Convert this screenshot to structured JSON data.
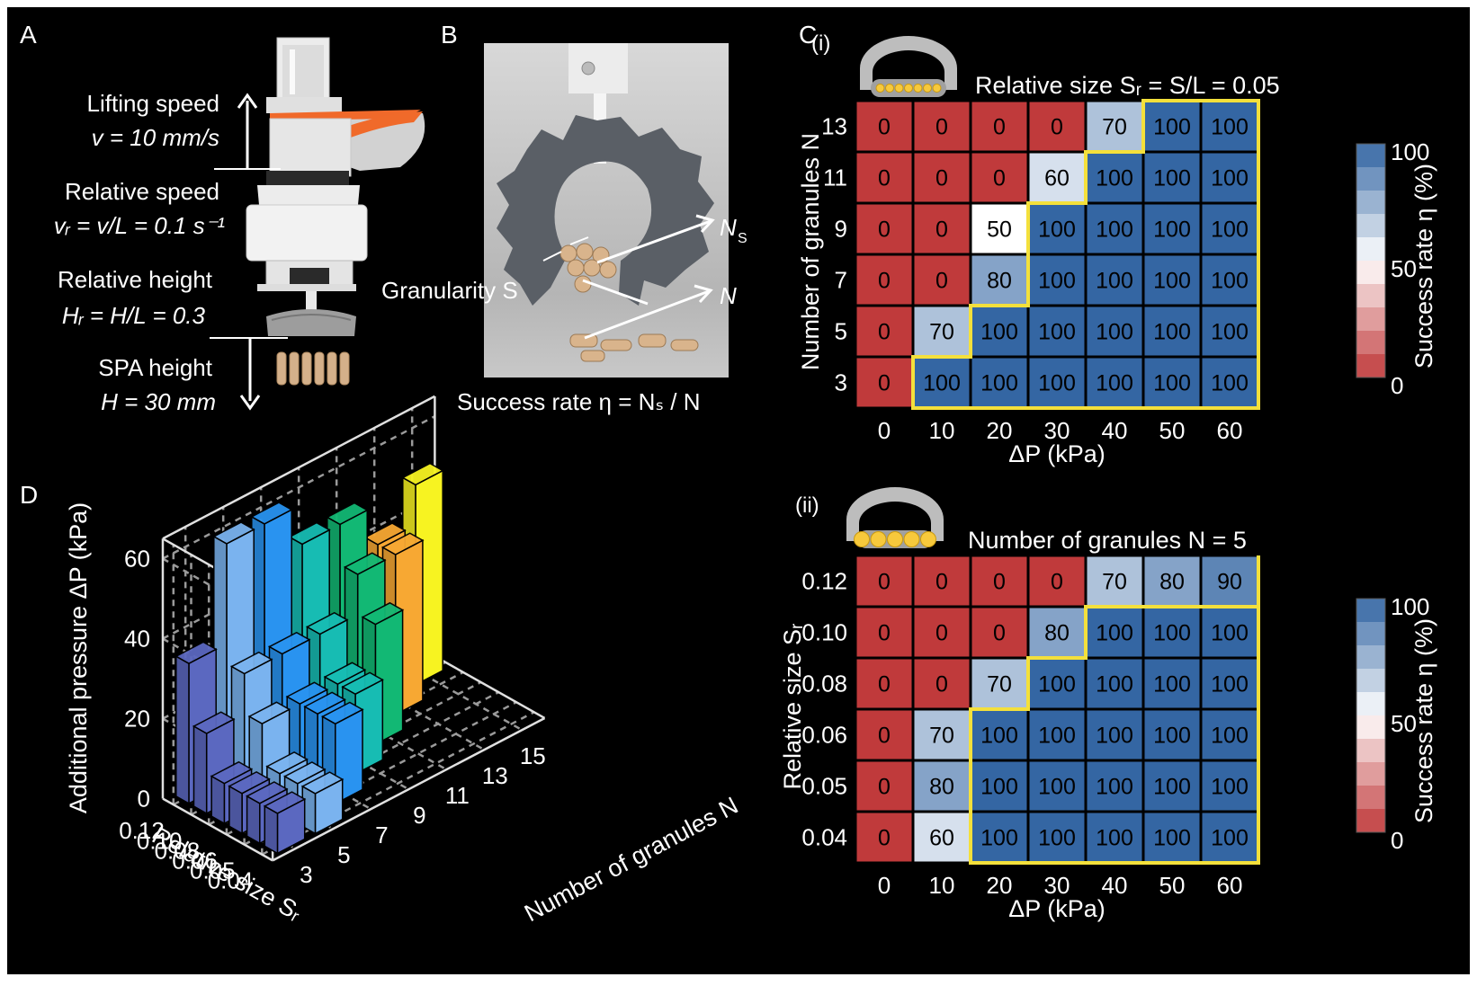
{
  "panel_labels": {
    "a": "A",
    "b": "B",
    "c": "C",
    "d": "D"
  },
  "panel_a": {
    "lifting_speed": "Lifting speed",
    "lifting_speed_eq": "v = 10 mm/s",
    "relative_speed": "Relative speed",
    "relative_speed_eq": "vᵣ = v/L = 0.1 s⁻¹",
    "relative_height": "Relative height",
    "relative_height_eq": "Hᵣ = H/L = 0.3",
    "spa_height": "SPA height",
    "spa_height_eq": "H = 30 mm"
  },
  "panel_b": {
    "granularity": "Granularity S",
    "ns_label": "N",
    "ns_sub": "S",
    "n_label": "N",
    "success_rate": "Success rate η = Nₛ / N"
  },
  "chart_data": [
    {
      "type": "heatmap",
      "panel": "C(i)",
      "title": "Relative size Sᵣ = S/L = 0.05",
      "subpanel": "(i)",
      "xlabel": "ΔP (kPa)",
      "ylabel": "Number of granules N",
      "x": [
        "0",
        "10",
        "20",
        "30",
        "40",
        "50",
        "60"
      ],
      "y": [
        "13",
        "11",
        "9",
        "7",
        "5",
        "3"
      ],
      "values": [
        [
          0,
          0,
          0,
          0,
          70,
          100,
          100
        ],
        [
          0,
          0,
          0,
          60,
          100,
          100,
          100
        ],
        [
          0,
          0,
          50,
          100,
          100,
          100,
          100
        ],
        [
          0,
          0,
          80,
          100,
          100,
          100,
          100
        ],
        [
          0,
          70,
          100,
          100,
          100,
          100,
          100
        ],
        [
          0,
          100,
          100,
          100,
          100,
          100,
          100
        ]
      ],
      "colorbar_label": "Success rate η (%)",
      "colorbar_ticks": [
        "100",
        "50",
        "0"
      ]
    },
    {
      "type": "heatmap",
      "panel": "C(ii)",
      "title": "Number of granules N = 5",
      "subpanel": "(ii)",
      "xlabel": "ΔP (kPa)",
      "ylabel": "Relative size Sᵣ",
      "x": [
        "0",
        "10",
        "20",
        "30",
        "40",
        "50",
        "60"
      ],
      "y": [
        "0.12",
        "0.10",
        "0.08",
        "0.06",
        "0.05",
        "0.04"
      ],
      "values": [
        [
          0,
          0,
          0,
          0,
          70,
          80,
          90
        ],
        [
          0,
          0,
          0,
          80,
          100,
          100,
          100
        ],
        [
          0,
          0,
          70,
          100,
          100,
          100,
          100
        ],
        [
          0,
          70,
          100,
          100,
          100,
          100,
          100
        ],
        [
          0,
          80,
          100,
          100,
          100,
          100,
          100
        ],
        [
          0,
          60,
          100,
          100,
          100,
          100,
          100
        ]
      ],
      "colorbar_label": "Success rate η (%)",
      "colorbar_ticks": [
        "100",
        "50",
        "0"
      ]
    },
    {
      "type": "bar",
      "panel": "D",
      "zlabel": "Additional pressure ΔP (kPa)",
      "xlabel": "Relative size Sᵣ",
      "ylabel": "Number of granules N",
      "z_ticks": [
        "0",
        "20",
        "40",
        "60"
      ],
      "zlim": [
        0,
        65
      ],
      "size_ticks": [
        "0.12",
        "0.10",
        "0.08",
        "0.06",
        "0.05",
        "0.04"
      ],
      "granule_ticks": [
        "3",
        "5",
        "7",
        "9",
        "11",
        "13",
        "15"
      ],
      "series": [
        {
          "granules": "3",
          "color": "#5B68C0",
          "points": [
            {
              "size": "0.12",
              "value": 35
            },
            {
              "size": "0.08",
              "value": 20
            },
            {
              "size": "0.06",
              "value": 10
            },
            {
              "size": "0.05",
              "value": 10
            },
            {
              "size": "0.04",
              "value": 10
            },
            {
              "size": "0.04",
              "value": 10
            }
          ]
        },
        {
          "granules": "5",
          "color": "#7AB3EF",
          "points": [
            {
              "size": "0.12",
              "value": 60
            },
            {
              "size": "0.10",
              "value": 30
            },
            {
              "size": "0.08",
              "value": 20
            },
            {
              "size": "0.06",
              "value": 10
            },
            {
              "size": "0.05",
              "value": 10
            },
            {
              "size": "0.04",
              "value": 10
            }
          ]
        },
        {
          "granules": "7",
          "color": "#2993F0",
          "points": [
            {
              "size": "0.12",
              "value": 60
            },
            {
              "size": "0.10",
              "value": 30
            },
            {
              "size": "0.08",
              "value": 20
            },
            {
              "size": "0.06",
              "value": 20
            },
            {
              "size": "0.04",
              "value": 20
            }
          ]
        },
        {
          "granules": "9",
          "color": "#17BCB3",
          "points": [
            {
              "size": "0.12",
              "value": 50
            },
            {
              "size": "0.10",
              "value": 30
            },
            {
              "size": "0.08",
              "value": 20
            },
            {
              "size": "0.06",
              "value": 20
            }
          ]
        },
        {
          "granules": "11",
          "color": "#12B874",
          "points": [
            {
              "size": "0.12",
              "value": 50
            },
            {
              "size": "0.10",
              "value": 40
            },
            {
              "size": "0.08",
              "value": 30
            }
          ]
        },
        {
          "granules": "13",
          "color": "#F7A833",
          "points": [
            {
              "size": "0.12",
              "value": 40
            },
            {
              "size": "0.10",
              "value": 40
            }
          ]
        },
        {
          "granules": "15",
          "color": "#F7F321",
          "points": [
            {
              "size": "0.12",
              "value": 50
            }
          ]
        }
      ]
    }
  ],
  "colors": {
    "background": "#000000",
    "low": "#C03A3B",
    "high": "#3466A3",
    "boundary": "#F4E03B"
  }
}
